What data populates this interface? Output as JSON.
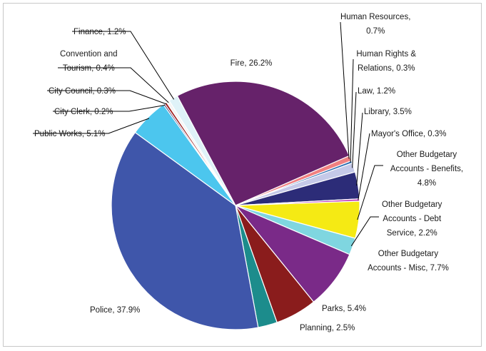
{
  "chart_data": {
    "type": "pie",
    "title": "",
    "slices": [
      {
        "label_lines": [
          "Fire, 26.2%"
        ],
        "name": "Fire",
        "value": 26.2,
        "color": "#66226a"
      },
      {
        "label_lines": [
          "Human Resources,",
          "0.7%"
        ],
        "name": "Human Resources",
        "value": 0.7,
        "color": "#f08080"
      },
      {
        "label_lines": [
          "Human Rights &",
          "Relations, 0.3%"
        ],
        "name": "Human Rights & Relations",
        "value": 0.3,
        "color": "#2b6cb0"
      },
      {
        "label_lines": [
          "Law, 1.2%"
        ],
        "name": "Law",
        "value": 1.2,
        "color": "#c5c9e8"
      },
      {
        "label_lines": [
          "Library, 3.5%"
        ],
        "name": "Library",
        "value": 3.5,
        "color": "#2c2c78"
      },
      {
        "label_lines": [
          "Mayor's Office, 0.3%"
        ],
        "name": "Mayor's Office",
        "value": 0.3,
        "color": "#c040c0"
      },
      {
        "label_lines": [
          "Other Budgetary",
          "Accounts - Benefits,",
          "4.8%"
        ],
        "name": "Other Budgetary Accounts - Benefits",
        "value": 4.8,
        "color": "#f5ea14"
      },
      {
        "label_lines": [
          "Other Budgetary",
          "Accounts - Debt",
          "Service, 2.2%"
        ],
        "name": "Other Budgetary Accounts - Debt Service",
        "value": 2.2,
        "color": "#7fd6e0"
      },
      {
        "label_lines": [
          "Other Budgetary",
          "Accounts - Misc, 7.7%"
        ],
        "name": "Other Budgetary Accounts - Misc",
        "value": 7.7,
        "color": "#7a2a88"
      },
      {
        "label_lines": [
          "Parks, 5.4%"
        ],
        "name": "Parks",
        "value": 5.4,
        "color": "#8a1c1c"
      },
      {
        "label_lines": [
          "Planning, 2.5%"
        ],
        "name": "Planning",
        "value": 2.5,
        "color": "#1c8c8c"
      },
      {
        "label_lines": [
          "Police, 37.9%"
        ],
        "name": "Police",
        "value": 37.9,
        "color": "#3f56aa"
      },
      {
        "label_lines": [
          "Public Works, 5.1%"
        ],
        "name": "Public Works",
        "value": 5.1,
        "color": "#4cc6ee"
      },
      {
        "label_lines": [
          "City Clerk, 0.2%"
        ],
        "name": "City Clerk",
        "value": 0.2,
        "color": "#3a2a6a"
      },
      {
        "label_lines": [
          "City Council, 0.3%"
        ],
        "name": "City Council",
        "value": 0.3,
        "color": "#a02020"
      },
      {
        "label_lines": [
          "Convention and",
          "Tourism, 0.4%"
        ],
        "name": "Convention and Tourism",
        "value": 0.4,
        "color": "#f4f4f4"
      },
      {
        "label_lines": [
          "Finance, 1.2%"
        ],
        "name": "Finance",
        "value": 1.2,
        "color": "#dff2f8"
      }
    ]
  }
}
